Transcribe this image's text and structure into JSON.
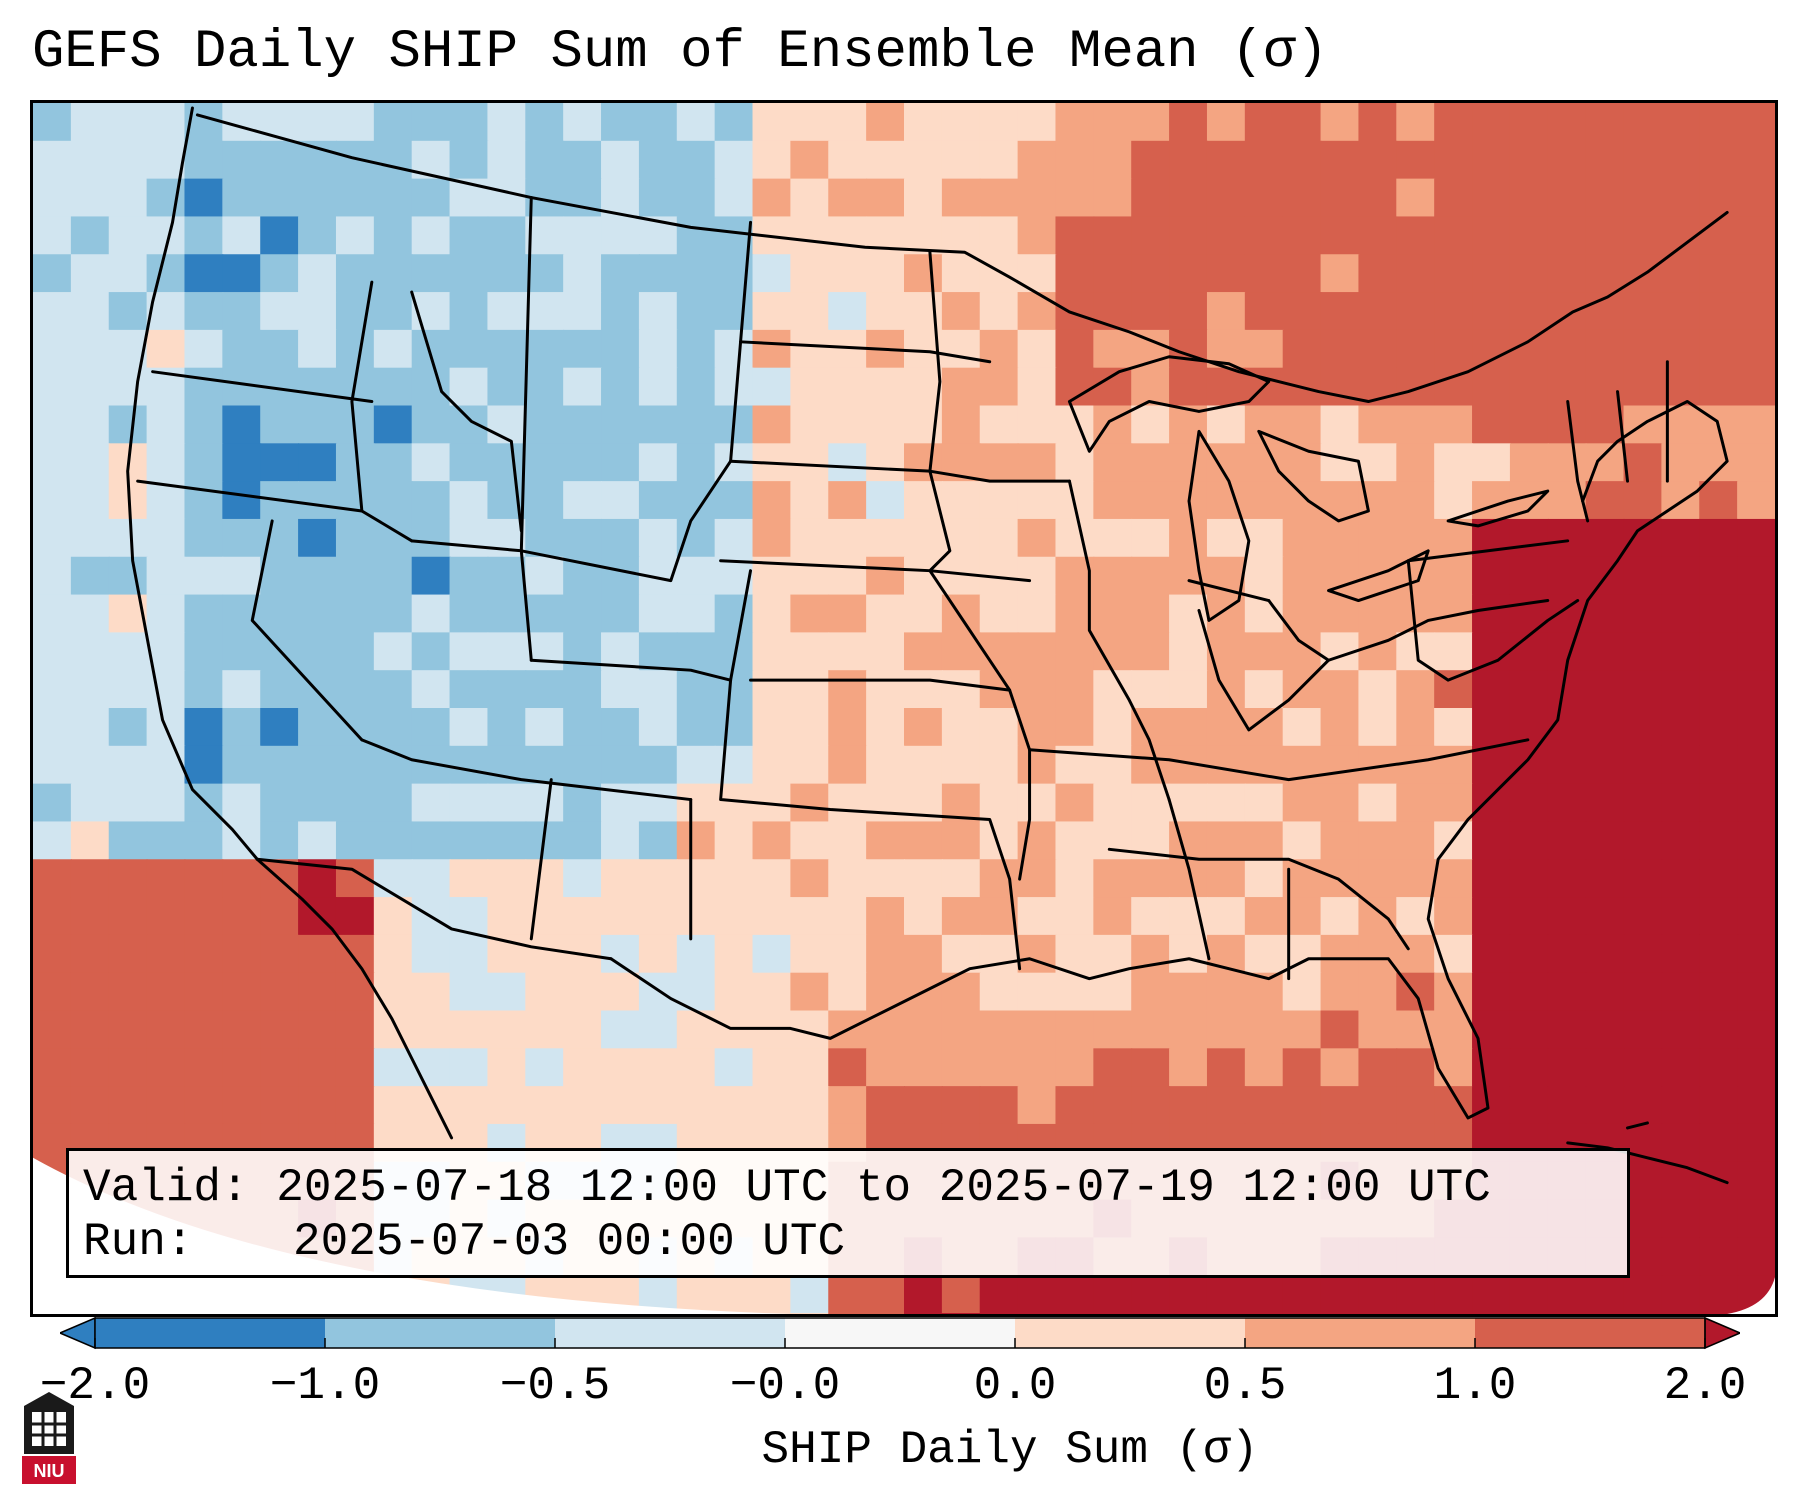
{
  "title": "GEFS Daily SHIP Sum of Ensemble Mean (σ)",
  "info": {
    "valid_label": "Valid:",
    "valid_value": "2025-07-18 12:00 UTC to 2025-07-19 12:00 UTC",
    "run_label": "Run:",
    "run_value": "2025-07-03 00:00 UTC"
  },
  "colorbar": {
    "label": "SHIP Daily Sum (σ)",
    "ticks": [
      "−2.0",
      "−1.0",
      "−0.5",
      "−0.0",
      "0.0",
      "0.5",
      "1.0",
      "2.0"
    ],
    "colors": [
      "#2f7fc0",
      "#92c5de",
      "#d1e5f0",
      "#f7f7f7",
      "#fddbc7",
      "#f4a582",
      "#d6604d",
      "#b2182b"
    ],
    "extend": "both"
  },
  "logo_text": "NIU",
  "map": {
    "region": "Contiguous United States",
    "field": "SHIP daily sum anomaly (σ)",
    "pattern": "negative over the interior West and Rockies; positive over the Plains, Midwest and East; strongly positive over the Gulf of Mexico, Atlantic and Baja California"
  }
}
